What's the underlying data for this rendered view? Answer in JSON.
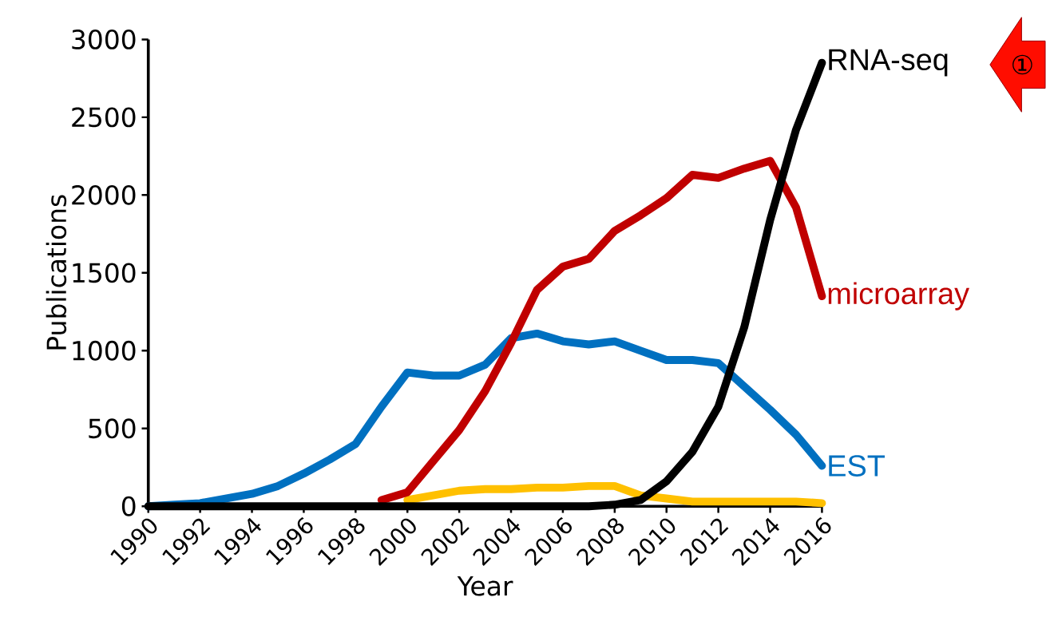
{
  "chart_data": {
    "type": "line",
    "xlabel": "Year",
    "ylabel": "Publications",
    "x": [
      1990,
      1991,
      1992,
      1993,
      1994,
      1995,
      1996,
      1997,
      1998,
      1999,
      2000,
      2001,
      2002,
      2003,
      2004,
      2005,
      2006,
      2007,
      2008,
      2009,
      2010,
      2011,
      2012,
      2013,
      2014,
      2015,
      2016
    ],
    "series": [
      {
        "color": "#ffc000",
        "values": [
          null,
          null,
          null,
          null,
          null,
          null,
          null,
          null,
          null,
          null,
          40,
          70,
          100,
          110,
          110,
          120,
          120,
          130,
          130,
          70,
          50,
          30,
          30,
          30,
          30,
          30,
          20
        ]
      },
      {
        "name": "EST",
        "color": "#0070c0",
        "values": [
          0,
          10,
          20,
          50,
          80,
          130,
          210,
          300,
          400,
          640,
          860,
          840,
          840,
          910,
          1080,
          1110,
          1060,
          1040,
          1060,
          1000,
          940,
          940,
          920,
          770,
          620,
          460,
          260
        ]
      },
      {
        "name": "microarray",
        "color": "#c00000",
        "values": [
          null,
          null,
          null,
          null,
          null,
          null,
          null,
          null,
          null,
          40,
          90,
          290,
          490,
          740,
          1050,
          1390,
          1540,
          1590,
          1770,
          1870,
          1980,
          2130,
          2110,
          2170,
          2220,
          1920,
          1350
        ]
      },
      {
        "name": "RNA-seq",
        "color": "#000000",
        "values": [
          0,
          0,
          0,
          0,
          0,
          0,
          0,
          0,
          0,
          0,
          0,
          0,
          0,
          0,
          0,
          0,
          0,
          0,
          10,
          40,
          160,
          350,
          640,
          1150,
          1840,
          2420,
          2850
        ]
      }
    ],
    "xlim": [
      1990,
      2016
    ],
    "ylim": [
      0,
      3000
    ],
    "xticks": [
      1990,
      1992,
      1994,
      1996,
      1998,
      2000,
      2002,
      2004,
      2006,
      2008,
      2010,
      2012,
      2014,
      2016
    ],
    "yticks": [
      0,
      500,
      1000,
      1500,
      2000,
      2500,
      3000
    ],
    "grid": false,
    "legend": false,
    "marker": "none",
    "line_style": "solid",
    "annotations": [
      "①"
    ]
  }
}
